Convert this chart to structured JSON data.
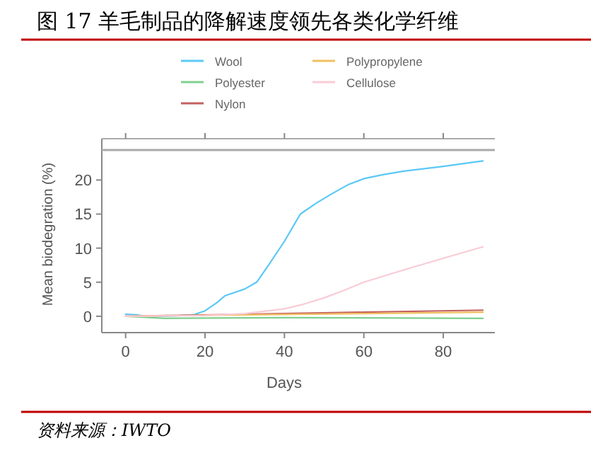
{
  "chart_data": {
    "type": "line",
    "title": "图 17 羊毛制品的降解速度领先各类化学纤维",
    "xlabel": "Days",
    "ylabel": "Mean biodegration (%)",
    "annotations": [
      "资料来源：IWTO"
    ],
    "xlim": [
      -6,
      93
    ],
    "xticks": [
      0,
      20,
      40,
      60,
      80
    ],
    "ylim": [
      -2.4,
      24.4
    ],
    "yticks": [
      0,
      5,
      10,
      15,
      20
    ],
    "grid": false,
    "legend": "top",
    "line_style": "solid",
    "series": [
      {
        "name": "Wool",
        "color": "#5bc8f5",
        "x": [
          0,
          3,
          5,
          10,
          17,
          20,
          23,
          25,
          28,
          30,
          33,
          36,
          40,
          44,
          48,
          52,
          56,
          60,
          65,
          70,
          80,
          90
        ],
        "values": [
          0.3,
          0.2,
          0,
          0,
          0.2,
          0.8,
          2,
          3,
          3.6,
          4,
          5,
          7.5,
          11,
          15,
          16.6,
          18,
          19.3,
          20.2,
          20.8,
          21.3,
          22,
          22.8
        ]
      },
      {
        "name": "Polyester",
        "color": "#7fd08f",
        "x": [
          0,
          10,
          40,
          90
        ],
        "values": [
          0,
          -0.3,
          -0.2,
          -0.3
        ]
      },
      {
        "name": "Nylon",
        "color": "#c46060",
        "x": [
          0,
          10,
          30,
          60,
          90
        ],
        "values": [
          0,
          0.1,
          0.3,
          0.6,
          0.9
        ]
      },
      {
        "name": "Polypropylene",
        "color": "#f0c060",
        "x": [
          0,
          30,
          60,
          90
        ],
        "values": [
          0,
          0.2,
          0.4,
          0.6
        ]
      },
      {
        "name": "Cellulose",
        "color": "#f9cbd6",
        "x": [
          0,
          20,
          30,
          40,
          45,
          50,
          55,
          60,
          70,
          80,
          90
        ],
        "values": [
          0,
          0.1,
          0.4,
          1.1,
          1.8,
          2.7,
          3.8,
          5,
          6.8,
          8.5,
          10.2
        ]
      }
    ]
  }
}
